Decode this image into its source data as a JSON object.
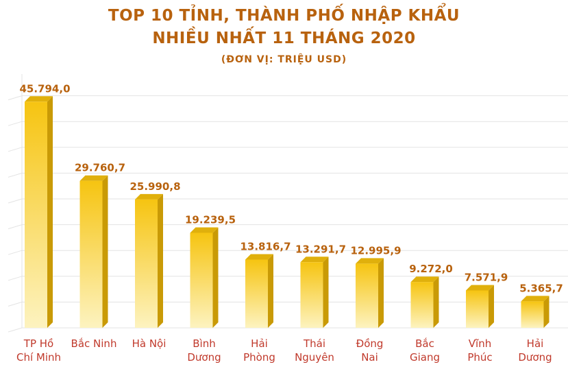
{
  "title_line1": "TOP 10 TỈNH, THÀNH PHỐ NHẬP KHẨU",
  "title_line2": "NHIỀU NHẤT 11 THÁNG 2020",
  "unit_label": "(ĐƠN VỊ: TRIỆU USD)",
  "colors": {
    "title": "#b8620e",
    "value_label": "#b8620e",
    "category_label": "#c0392b",
    "bar_top": "#f6c411",
    "bar_bottom": "#fdf3c0",
    "bar_side": "#c99a06",
    "bar_cap": "#e0b00c",
    "grid": "#e3e3e3"
  },
  "chart_data": {
    "type": "bar",
    "title": "TOP 10 TỈNH, THÀNH PHỐ NHẬP KHẨU NHIỀU NHẤT 11 THÁNG 2020",
    "subtitle": "(ĐƠN VỊ: TRIỆU USD)",
    "categories": [
      [
        "TP Hồ",
        "Chí Minh"
      ],
      [
        "Bắc Ninh"
      ],
      [
        "Hà Nội"
      ],
      [
        "Bình",
        "Dương"
      ],
      [
        "Hải",
        "Phòng"
      ],
      [
        "Thái",
        "Nguyên"
      ],
      [
        "Đồng",
        "Nai"
      ],
      [
        "Bắc",
        "Giang"
      ],
      [
        "Vĩnh",
        "Phúc"
      ],
      [
        "Hải",
        "Dương"
      ]
    ],
    "values": [
      45794.0,
      29760.7,
      25990.8,
      19239.5,
      13816.7,
      13291.7,
      12995.9,
      9272.0,
      7571.9,
      5365.7
    ],
    "value_labels": [
      "45.794,0",
      "29.760,7",
      "25.990,8",
      "19.239,5",
      "13.816,7",
      "13.291,7",
      "12.995,9",
      "9.272,0",
      "7.571,9",
      "5.365,7"
    ],
    "ylim": [
      0,
      50000
    ],
    "grid": true,
    "legend": "none"
  }
}
